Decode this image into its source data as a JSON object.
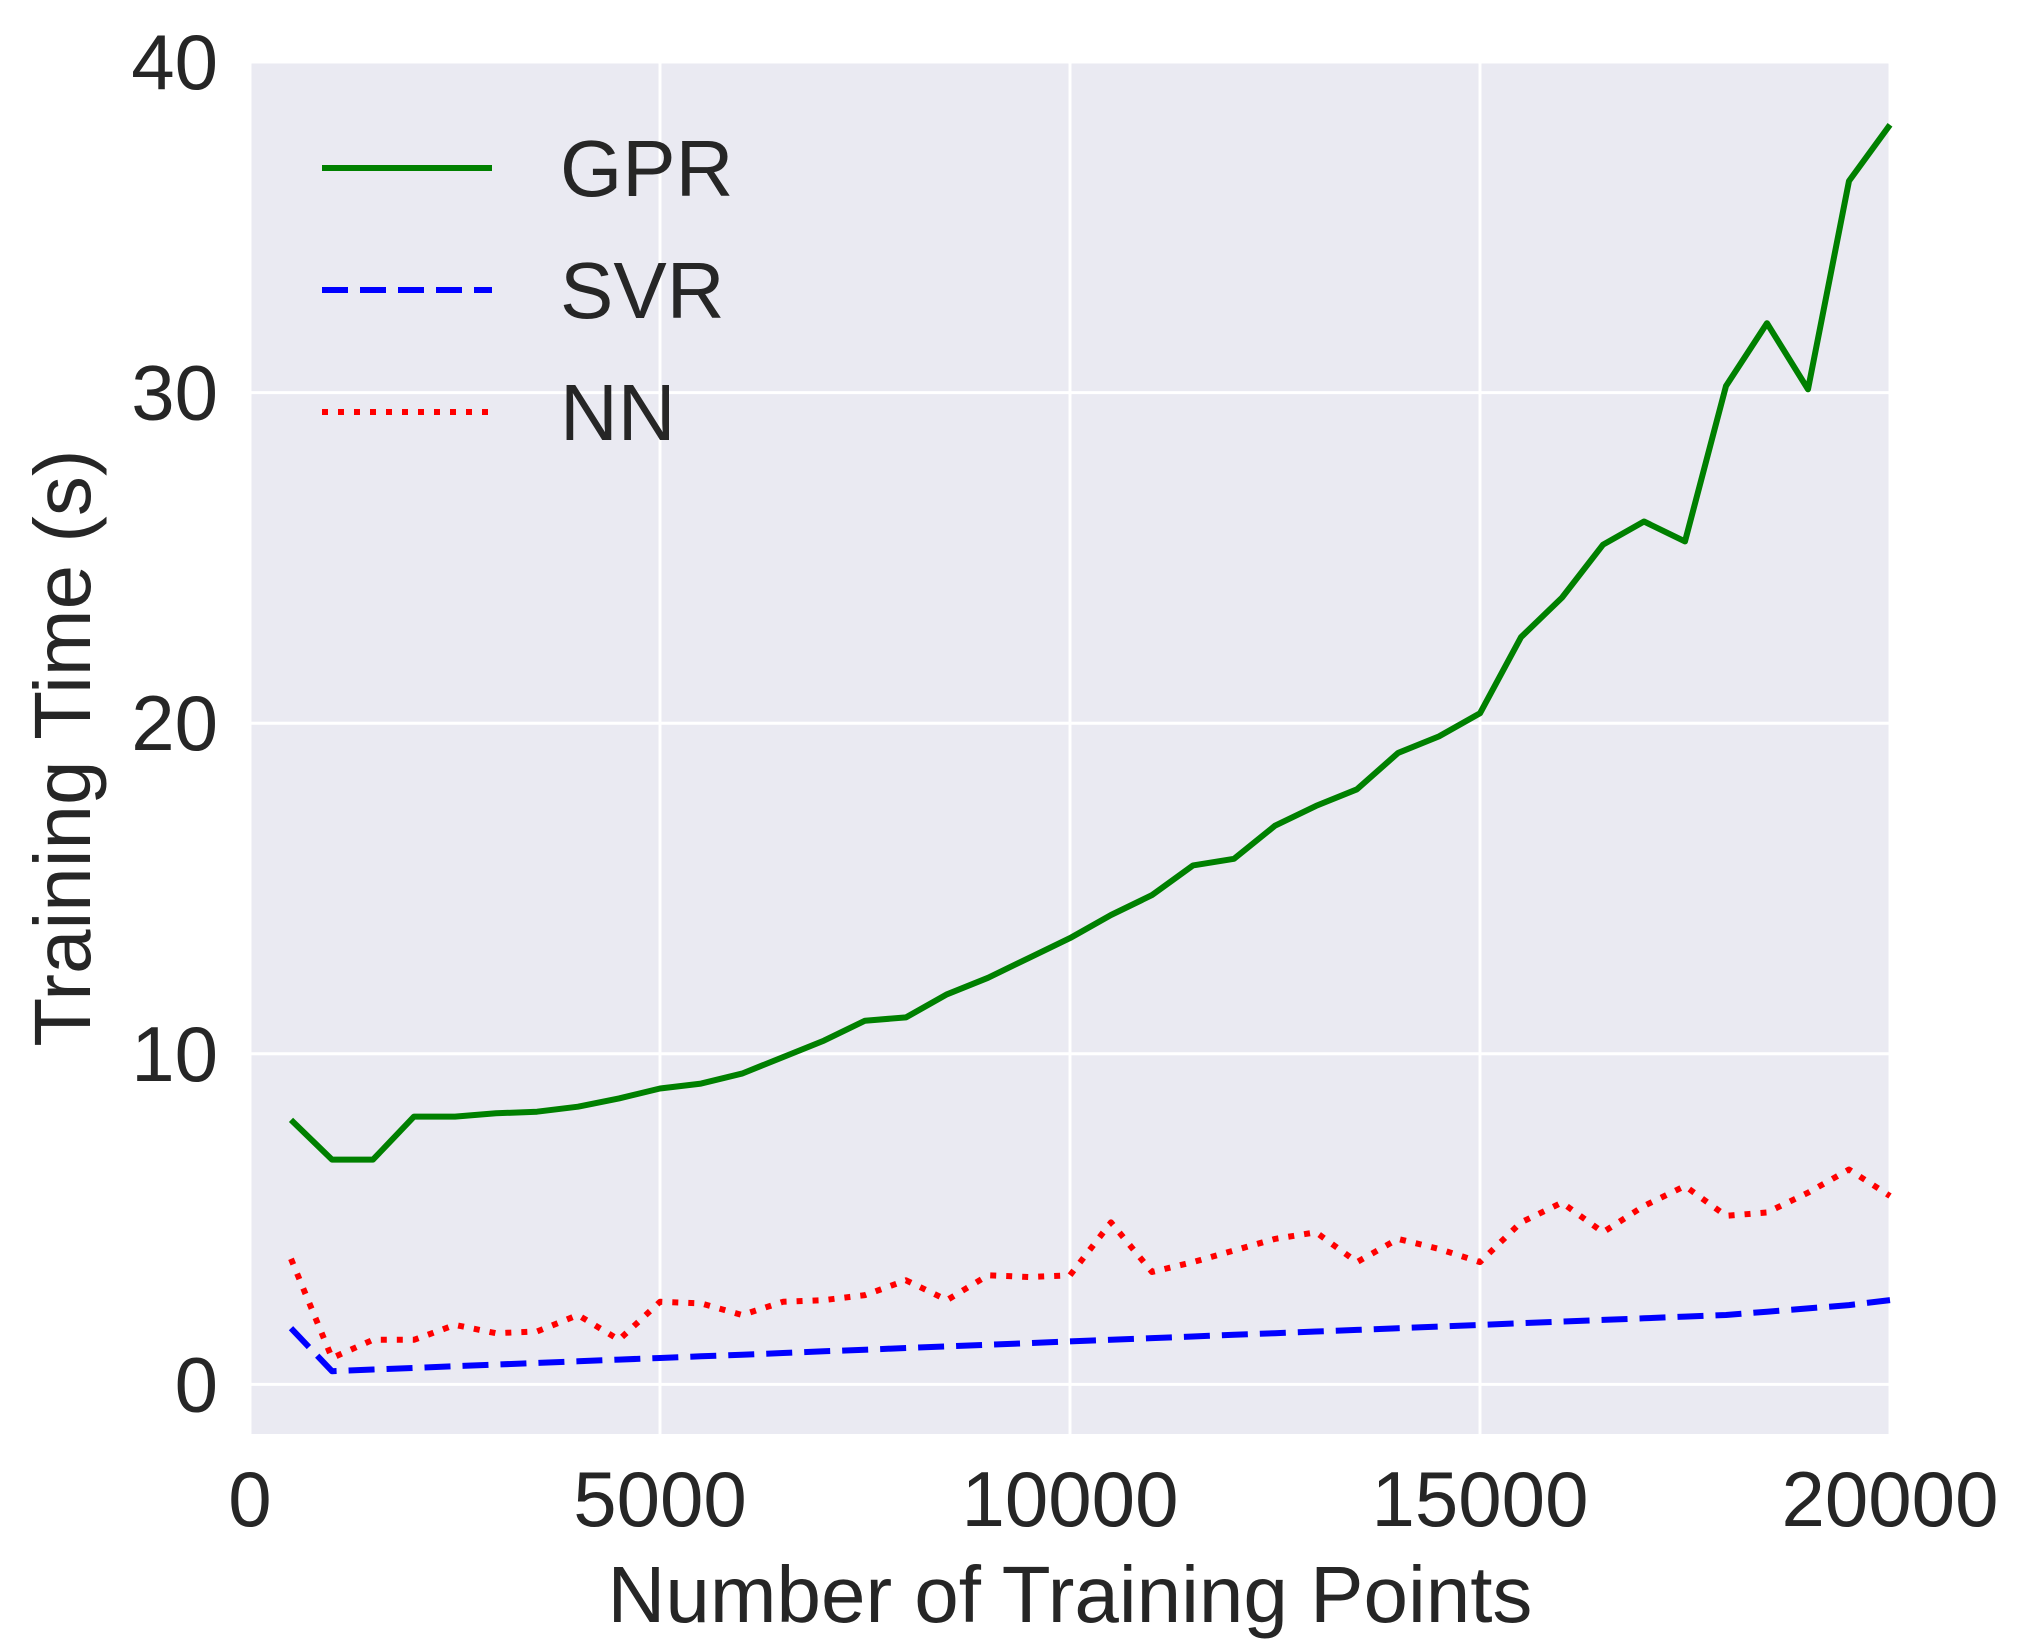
{
  "chart_data": {
    "type": "line",
    "xlabel": "Number of Training Points",
    "ylabel": "Training Time (s)",
    "xlim": [
      0,
      20000
    ],
    "ylim": [
      -1.5,
      40
    ],
    "xticks": [
      0,
      5000,
      10000,
      15000,
      20000
    ],
    "yticks": [
      0,
      10,
      20,
      30,
      40
    ],
    "grid": true,
    "legend_position": "top-left",
    "x": [
      500,
      1000,
      1500,
      2000,
      2500,
      3000,
      3500,
      4000,
      4500,
      5000,
      5500,
      6000,
      6500,
      7000,
      7500,
      8000,
      8500,
      9000,
      9500,
      10000,
      10500,
      11000,
      11500,
      12000,
      12500,
      13000,
      13500,
      14000,
      14500,
      15000,
      15500,
      16000,
      16500,
      17000,
      17500,
      18000,
      18500,
      19000,
      19500,
      20000
    ],
    "series": [
      {
        "name": "GPR",
        "color": "#008000",
        "dash": "solid",
        "values": [
          8.0,
          6.8,
          6.8,
          8.1,
          8.1,
          8.2,
          8.25,
          8.4,
          8.65,
          8.95,
          9.1,
          9.4,
          9.9,
          10.4,
          11.0,
          11.1,
          11.8,
          12.3,
          12.9,
          13.5,
          14.2,
          14.8,
          15.7,
          15.9,
          16.9,
          17.5,
          18.0,
          19.1,
          19.6,
          20.3,
          22.6,
          23.8,
          25.4,
          26.1,
          25.5,
          30.2,
          32.1,
          30.1,
          36.4,
          38.1
        ]
      },
      {
        "name": "SVR",
        "color": "#0000ff",
        "dash": "dashed",
        "values": [
          1.7,
          0.4,
          0.45,
          0.5,
          0.55,
          0.6,
          0.65,
          0.7,
          0.75,
          0.8,
          0.85,
          0.9,
          0.95,
          1.0,
          1.05,
          1.1,
          1.15,
          1.2,
          1.25,
          1.3,
          1.35,
          1.4,
          1.45,
          1.5,
          1.55,
          1.6,
          1.65,
          1.7,
          1.75,
          1.8,
          1.85,
          1.9,
          1.95,
          2.0,
          2.05,
          2.1,
          2.2,
          2.3,
          2.4,
          2.55
        ]
      },
      {
        "name": "NN",
        "color": "#ff0000",
        "dash": "dotted",
        "values": [
          3.8,
          0.8,
          1.35,
          1.35,
          1.8,
          1.55,
          1.6,
          2.1,
          1.35,
          2.5,
          2.45,
          2.1,
          2.5,
          2.55,
          2.7,
          3.15,
          2.55,
          3.3,
          3.25,
          3.3,
          4.9,
          3.4,
          3.7,
          4.05,
          4.4,
          4.6,
          3.7,
          4.4,
          4.1,
          3.7,
          4.9,
          5.5,
          4.6,
          5.4,
          6.0,
          5.1,
          5.2,
          5.8,
          6.5,
          5.7
        ]
      }
    ]
  }
}
